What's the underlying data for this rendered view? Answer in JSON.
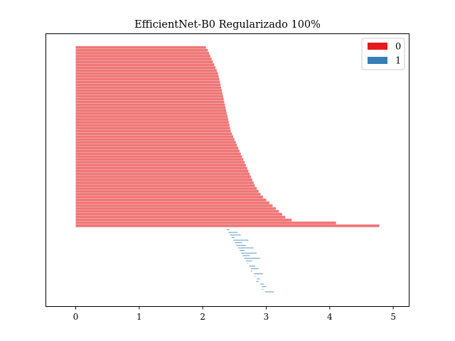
{
  "chart_data": {
    "type": "bar",
    "orientation": "horizontal",
    "title": "EfficientNet-B0 Regularizado 100%",
    "xlabel": "",
    "ylabel": "",
    "xlim": [
      -0.47,
      5.25
    ],
    "xticks": [
      "0",
      "1",
      "2",
      "3",
      "4",
      "5"
    ],
    "legend": {
      "placement": "top-right",
      "entries": [
        {
          "label": "0",
          "color": "#e41a1c"
        },
        {
          "label": "1",
          "color": "#377eb8"
        }
      ]
    },
    "series": [
      {
        "name": "0",
        "color": "#e41a1c",
        "bar_start": 0,
        "values": [
          2.05,
          2.08,
          2.1,
          2.12,
          2.14,
          2.16,
          2.18,
          2.2,
          2.22,
          2.24,
          2.25,
          2.26,
          2.27,
          2.28,
          2.29,
          2.3,
          2.31,
          2.32,
          2.33,
          2.34,
          2.35,
          2.36,
          2.37,
          2.38,
          2.39,
          2.4,
          2.41,
          2.42,
          2.43,
          2.44,
          2.46,
          2.48,
          2.5,
          2.52,
          2.54,
          2.56,
          2.58,
          2.6,
          2.62,
          2.64,
          2.66,
          2.68,
          2.7,
          2.72,
          2.74,
          2.76,
          2.78,
          2.8,
          2.82,
          2.85,
          2.88,
          2.91,
          2.95,
          3.0,
          3.05,
          3.1,
          3.15,
          3.2,
          3.25,
          3.3,
          3.4,
          4.1,
          4.78
        ]
      },
      {
        "name": "1",
        "color": "#377eb8",
        "bar_start": 2.38,
        "values": [
          2.42,
          2.55,
          2.6,
          2.5,
          2.72,
          2.62,
          2.68,
          2.8,
          2.66,
          2.85,
          2.74,
          2.9,
          2.78,
          2.7,
          2.83,
          2.88,
          2.76,
          2.95,
          2.82,
          2.9,
          2.84,
          2.96,
          3.0,
          2.93,
          3.12
        ]
      }
    ]
  }
}
